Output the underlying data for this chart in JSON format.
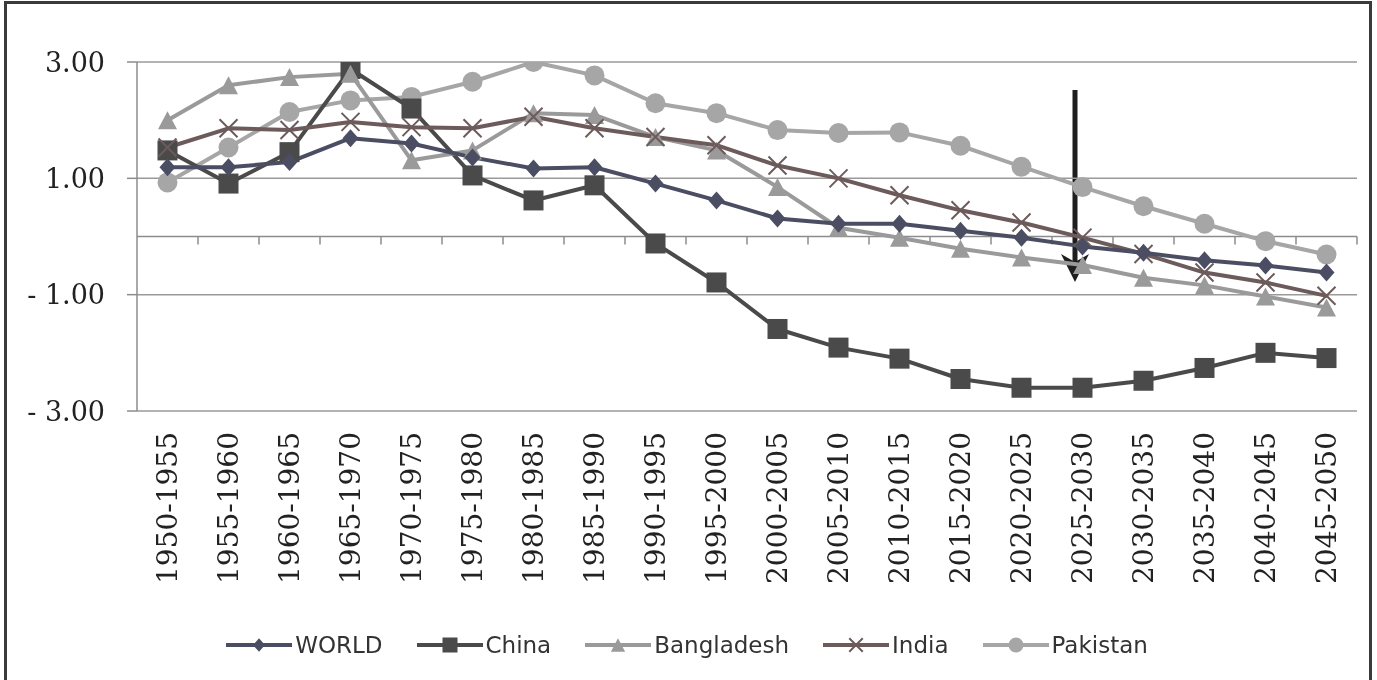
{
  "chart_data": {
    "type": "line",
    "categories": [
      "1950-1955",
      "1955-1960",
      "1960-1965",
      "1965-1970",
      "1970-1975",
      "1975-1980",
      "1980-1985",
      "1985-1990",
      "1990-1995",
      "1995-2000",
      "2000-2005",
      "2005-2010",
      "2010-2015",
      "2015-2020",
      "2020-2025",
      "2025-2030",
      "2030-2035",
      "2035-2040",
      "2040-2045",
      "2045-2050"
    ],
    "series": [
      {
        "name": "WORLD",
        "color": "#4b4d63",
        "marker": "diamond",
        "values": [
          1.19,
          1.19,
          1.28,
          1.69,
          1.6,
          1.36,
          1.17,
          1.19,
          0.91,
          0.62,
          0.31,
          0.22,
          0.22,
          0.1,
          -0.02,
          -0.17,
          -0.28,
          -0.41,
          -0.5,
          -0.62
        ]
      },
      {
        "name": "China",
        "color": "#4a4a4a",
        "marker": "square",
        "values": [
          1.48,
          0.91,
          1.45,
          2.88,
          2.2,
          1.05,
          0.62,
          0.88,
          -0.12,
          -0.79,
          -1.59,
          -1.91,
          -2.1,
          -2.45,
          -2.6,
          -2.6,
          -2.48,
          -2.26,
          -2.0,
          -2.09
        ]
      },
      {
        "name": "Bangladesh",
        "color": "#9a9a9a",
        "marker": "triangle",
        "values": [
          2.0,
          2.6,
          2.74,
          2.8,
          1.31,
          1.48,
          2.12,
          2.09,
          1.71,
          1.48,
          0.85,
          0.15,
          -0.02,
          -0.21,
          -0.36,
          -0.49,
          -0.71,
          -0.84,
          -1.03,
          -1.22
        ]
      },
      {
        "name": "India",
        "color": "#6d5b5b",
        "marker": "cross",
        "values": [
          1.53,
          1.86,
          1.83,
          1.97,
          1.88,
          1.86,
          2.06,
          1.86,
          1.71,
          1.57,
          1.22,
          1.0,
          0.71,
          0.45,
          0.24,
          -0.02,
          -0.3,
          -0.62,
          -0.79,
          -1.02
        ]
      },
      {
        "name": "Pakistan",
        "color": "#a6a6a6",
        "marker": "circle",
        "values": [
          0.93,
          1.53,
          2.14,
          2.34,
          2.4,
          2.66,
          3.0,
          2.77,
          2.29,
          2.12,
          1.83,
          1.78,
          1.79,
          1.56,
          1.2,
          0.85,
          0.52,
          0.22,
          -0.08,
          -0.31
        ]
      }
    ],
    "ylim": [
      -3,
      3
    ],
    "yticks": [
      {
        "value": 3,
        "label": "3.00"
      },
      {
        "value": 1,
        "label": "1.00"
      },
      {
        "value": -1,
        "label": "- 1.00"
      },
      {
        "value": -3,
        "label": "- 3.00"
      }
    ],
    "grid": "y",
    "legend": "bottom"
  }
}
